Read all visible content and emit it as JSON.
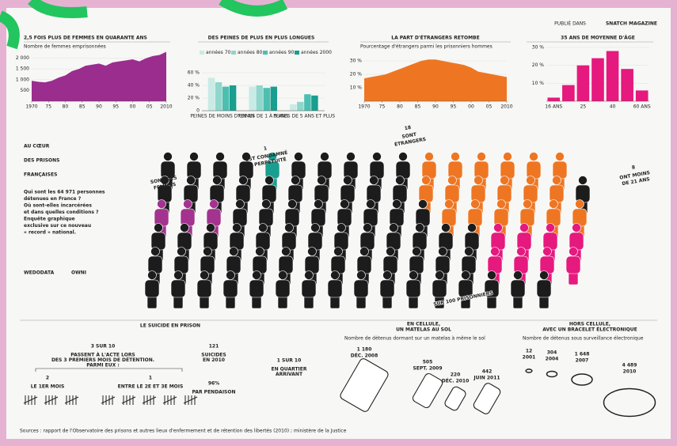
{
  "publisher": [
    "PUBLIÉ DANS",
    "SNATCH MAGAZINE"
  ],
  "headline": [
    "AU CŒUR",
    "DES PRISONS",
    "FRANÇAISES"
  ],
  "intro": [
    "Qui sont les 64 971 personnes",
    "détenues en France ?",
    "Où sont-elles incarcérées",
    "et dans quelles conditions ?",
    "Enquête graphique",
    "exclusive sur ce nouveau",
    "« record » national."
  ],
  "credits": [
    "WEDODATA",
    "OWNI"
  ],
  "headline_count": "SUR 100 PRISONNIERS",
  "groups": [
    {
      "count": 3,
      "label": [
        "SONT DES",
        "FEMMES"
      ],
      "color": "#a3338f"
    },
    {
      "count": 1,
      "label": [
        "EST CONDAMNÉ",
        "À PERPÉTUITÉ"
      ],
      "color": "#1a9e8f"
    },
    {
      "count": 18,
      "label": [
        "SONT",
        "ÉTRANGERS"
      ],
      "color": "#ee7623"
    },
    {
      "count": 8,
      "label": [
        "ONT MOINS",
        "DE 21 ANS"
      ],
      "color": "#e5197e"
    }
  ],
  "suicide": {
    "title": "LE SUICIDE EN PRISON",
    "main": "3 SUR 10",
    "main_text": [
      "PASSENT À L'ACTE LORS",
      "DES 3 PREMIERS MOIS DE DÉTENTION.",
      "PARMI EUX :"
    ],
    "first": "2",
    "first_text": "LE 1ER MOIS",
    "second": "1",
    "second_text": "ENTRE LE 2E ET 3E MOIS",
    "total": "121",
    "total_text": [
      "SUICIDES",
      "EN 2010"
    ],
    "arrival": "1 SUR 10",
    "arrival_text": [
      "EN QUARTIER",
      "ARRIVANT"
    ],
    "hanging": "96%",
    "hanging_text": "PAR PENDAISON"
  },
  "mattress": {
    "title": [
      "EN CELLULE,",
      "UN MATELAS AU SOL"
    ],
    "subtitle": "Nombre de détenus dormant sur un matelas à même le sol",
    "entries": [
      {
        "value": "1 180",
        "date": "DÉC. 2008"
      },
      {
        "value": "505",
        "date": "SEPT. 2009"
      },
      {
        "value": "220",
        "date": "DÉC. 2010"
      },
      {
        "value": "442",
        "date": "JUIN 2011"
      }
    ]
  },
  "bracelet": {
    "title": [
      "HORS CELLULE,",
      "AVEC UN BRACELET ÉLECTRONIQUE"
    ],
    "subtitle": "Nombre de détenus sous surveillance électronique",
    "entries": [
      {
        "value": "12",
        "date": "2001"
      },
      {
        "value": "304",
        "date": "2004"
      },
      {
        "value": "1 648",
        "date": "2007"
      },
      {
        "value": "4 489",
        "date": "2010"
      }
    ]
  },
  "source": "Sources : rapport de l'Observatoire des prisons et autres lieux d'enfermement et de rétention des libertés (2010) ; ministère de la Justice",
  "chart_data": [
    {
      "type": "area",
      "title": "2,5 FOIS PLUS DE FEMMES EN QUARANTE ANS",
      "subtitle": "Nombre de femmes emprisonnées",
      "color": "#9b2d8f",
      "x": [
        1970,
        1972,
        1974,
        1976,
        1978,
        1980,
        1982,
        1984,
        1986,
        1988,
        1990,
        1992,
        1994,
        1996,
        1998,
        2000,
        2002,
        2004,
        2006,
        2008,
        2010
      ],
      "values": [
        950,
        900,
        880,
        950,
        1100,
        1200,
        1400,
        1500,
        1650,
        1700,
        1750,
        1650,
        1800,
        1850,
        1900,
        1950,
        1850,
        2000,
        2100,
        2150,
        2300
      ],
      "xlim": [
        1970,
        2010
      ],
      "ylim": [
        0,
        2500
      ],
      "xticks": [
        1970,
        {
          "value": 1975,
          "label": "75"
        },
        {
          "value": 1980,
          "label": "80"
        },
        {
          "value": 1985,
          "label": "85"
        },
        {
          "value": 1990,
          "label": "90"
        },
        {
          "value": 1995,
          "label": "95"
        },
        {
          "value": 2000,
          "label": "00"
        },
        {
          "value": 2005,
          "label": "05"
        },
        2010
      ],
      "yticks": [
        500,
        {
          "value": 1000,
          "label": "1 000"
        },
        {
          "value": 1500,
          "label": "1 500"
        },
        {
          "value": 2000,
          "label": "2 000"
        }
      ],
      "grid": true
    },
    {
      "type": "grouped-bar",
      "title": "DES PEINES DE PLUS EN PLUS LONGUES",
      "categories": [
        "PEINES DE MOINS D'UN AN",
        "PEINES DE 1 À 5 ANS",
        "PEINES DE 5 ANS ET PLUS"
      ],
      "series": [
        {
          "name": "années 70",
          "color": "#c8ebe6",
          "values": [
            52,
            38,
            10
          ]
        },
        {
          "name": "années 80",
          "color": "#8fd6cc",
          "values": [
            45,
            40,
            14
          ]
        },
        {
          "name": "années 90",
          "color": "#4cbfb0",
          "values": [
            38,
            36,
            26
          ]
        },
        {
          "name": "années 2000",
          "color": "#1a9e8f",
          "values": [
            40,
            38,
            24
          ]
        }
      ],
      "ylim": [
        0,
        60
      ],
      "yticks": [
        0,
        {
          "value": 20,
          "label": "20 %"
        },
        {
          "value": 40,
          "label": "40 %"
        },
        {
          "value": 60,
          "label": "60 %"
        }
      ],
      "grid": true
    },
    {
      "type": "area",
      "title": "LA PART D'ÉTRANGERS RETOMBE",
      "subtitle": "Pourcentage d'étrangers parmi les prisonniers hommes",
      "color": "#ee7623",
      "x": [
        1970,
        1972,
        1974,
        1976,
        1978,
        1980,
        1982,
        1984,
        1986,
        1988,
        1990,
        1992,
        1994,
        1996,
        1998,
        2000,
        2002,
        2004,
        2006,
        2008,
        2010
      ],
      "values": [
        17,
        18,
        19,
        20,
        22,
        24,
        26,
        28,
        30,
        31,
        31,
        30,
        29,
        28,
        27,
        25,
        22,
        21,
        20,
        19,
        18
      ],
      "xlim": [
        1970,
        2010
      ],
      "ylim": [
        0,
        40
      ],
      "xticks": [
        1970,
        {
          "value": 1975,
          "label": "75"
        },
        {
          "value": 1980,
          "label": "80"
        },
        {
          "value": 1985,
          "label": "85"
        },
        {
          "value": 1990,
          "label": "90"
        },
        {
          "value": 1995,
          "label": "95"
        },
        {
          "value": 2000,
          "label": "00"
        },
        {
          "value": 2005,
          "label": "05"
        },
        2010
      ],
      "yticks": [
        {
          "value": 10,
          "label": "10 %"
        },
        {
          "value": 20,
          "label": "20 %"
        },
        {
          "value": 30,
          "label": "30 %"
        }
      ],
      "grid": true
    },
    {
      "type": "bar",
      "title": "35 ANS DE MOYENNE D'ÂGE",
      "color": "#e5197e",
      "categories": [
        "16 ANS",
        null,
        "25",
        null,
        "40",
        null,
        "60 ANS"
      ],
      "values": [
        2,
        9,
        20,
        24,
        28,
        18,
        6
      ],
      "ylim": [
        0,
        30
      ],
      "yticks": [
        {
          "value": 10,
          "label": "10 %"
        },
        {
          "value": 20,
          "label": "20 %"
        },
        {
          "value": 30,
          "label": "30 %"
        }
      ],
      "grid": true
    }
  ]
}
